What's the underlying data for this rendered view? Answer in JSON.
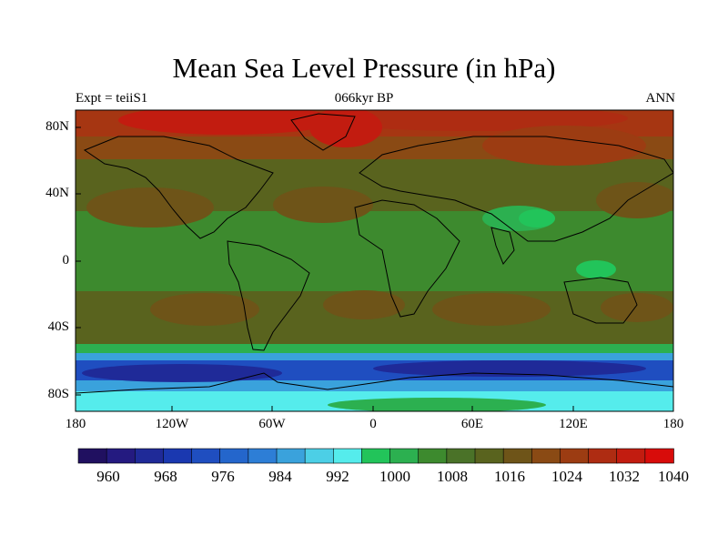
{
  "title": "Mean Sea Level Pressure (in hPa)",
  "subtitle": "066kyr BP",
  "left_label": "Expt = teiiS1",
  "right_label": "ANN",
  "lat_labels": [
    "80N",
    "40N",
    "0",
    "40S",
    "80S"
  ],
  "lon_labels": [
    "180",
    "120W",
    "60W",
    "0",
    "60E",
    "120E",
    "180"
  ],
  "colorbar": {
    "labels": [
      "960",
      "968",
      "976",
      "984",
      "992",
      "1000",
      "1008",
      "1016",
      "1024",
      "1032",
      "1040"
    ],
    "colors": [
      "#201060",
      "#241a80",
      "#1f2a98",
      "#1a38b0",
      "#1f4ec0",
      "#2466cc",
      "#2d7ed6",
      "#3aa2dc",
      "#4ccfe6",
      "#55ecec",
      "#22c45a",
      "#2cb050",
      "#3d8a2e",
      "#4a7228",
      "#59631e",
      "#6e5418",
      "#8a4a14",
      "#9c3c12",
      "#ae2c12",
      "#c21c10",
      "#d80c0a"
    ]
  },
  "colors": {
    "land_outline": "#000000",
    "arctic": "#b02810",
    "subpolar": "#8a4a14",
    "midlat": "#4a7228",
    "highs": "#6e5418",
    "tropics": "#3d8a2e",
    "lows": "#22c45a",
    "southern_low": "#1f4ec0",
    "antarctic": "#55ecec"
  }
}
